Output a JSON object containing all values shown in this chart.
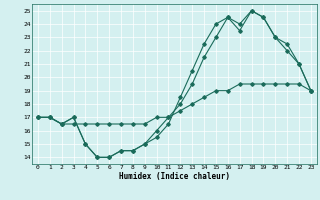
{
  "xlabel": "Humidex (Indice chaleur)",
  "bg_color": "#d4f0f0",
  "grid_color": "#b8dada",
  "line_color": "#1a6b5a",
  "xlim": [
    -0.5,
    23.5
  ],
  "ylim": [
    13.5,
    25.5
  ],
  "yticks": [
    14,
    15,
    16,
    17,
    18,
    19,
    20,
    21,
    22,
    23,
    24,
    25
  ],
  "xticks": [
    0,
    1,
    2,
    3,
    4,
    5,
    6,
    7,
    8,
    9,
    10,
    11,
    12,
    13,
    14,
    15,
    16,
    17,
    18,
    19,
    20,
    21,
    22,
    23
  ],
  "line1_x": [
    0,
    1,
    2,
    3,
    4,
    5,
    6,
    7,
    8,
    9,
    10,
    11,
    12,
    13,
    14,
    15,
    16,
    17,
    18,
    19,
    20,
    21,
    22,
    23
  ],
  "line1_y": [
    17,
    17,
    16.5,
    16.5,
    16.5,
    16.5,
    16.5,
    16.5,
    16.5,
    16.5,
    17,
    17,
    17.5,
    18,
    18.5,
    19,
    19,
    19.5,
    19.5,
    19.5,
    19.5,
    19.5,
    19.5,
    19
  ],
  "line2_x": [
    0,
    1,
    2,
    3,
    4,
    5,
    6,
    7,
    8,
    9,
    10,
    11,
    12,
    13,
    14,
    15,
    16,
    17,
    18,
    19,
    20,
    21,
    22,
    23
  ],
  "line2_y": [
    17,
    17,
    16.5,
    17,
    15,
    14,
    14,
    14.5,
    14.5,
    15,
    15.5,
    16.5,
    18.5,
    20.5,
    22.5,
    24,
    24.5,
    23.5,
    25,
    24.5,
    23,
    22.5,
    21,
    19
  ],
  "line3_x": [
    0,
    1,
    2,
    3,
    4,
    5,
    6,
    7,
    8,
    9,
    10,
    11,
    12,
    13,
    14,
    15,
    16,
    17,
    18,
    19,
    20,
    21,
    22,
    23
  ],
  "line3_y": [
    17,
    17,
    16.5,
    17,
    15,
    14,
    14,
    14.5,
    14.5,
    15,
    16,
    17,
    18,
    19.5,
    21.5,
    23,
    24.5,
    24,
    25,
    24.5,
    23,
    22,
    21,
    19
  ]
}
